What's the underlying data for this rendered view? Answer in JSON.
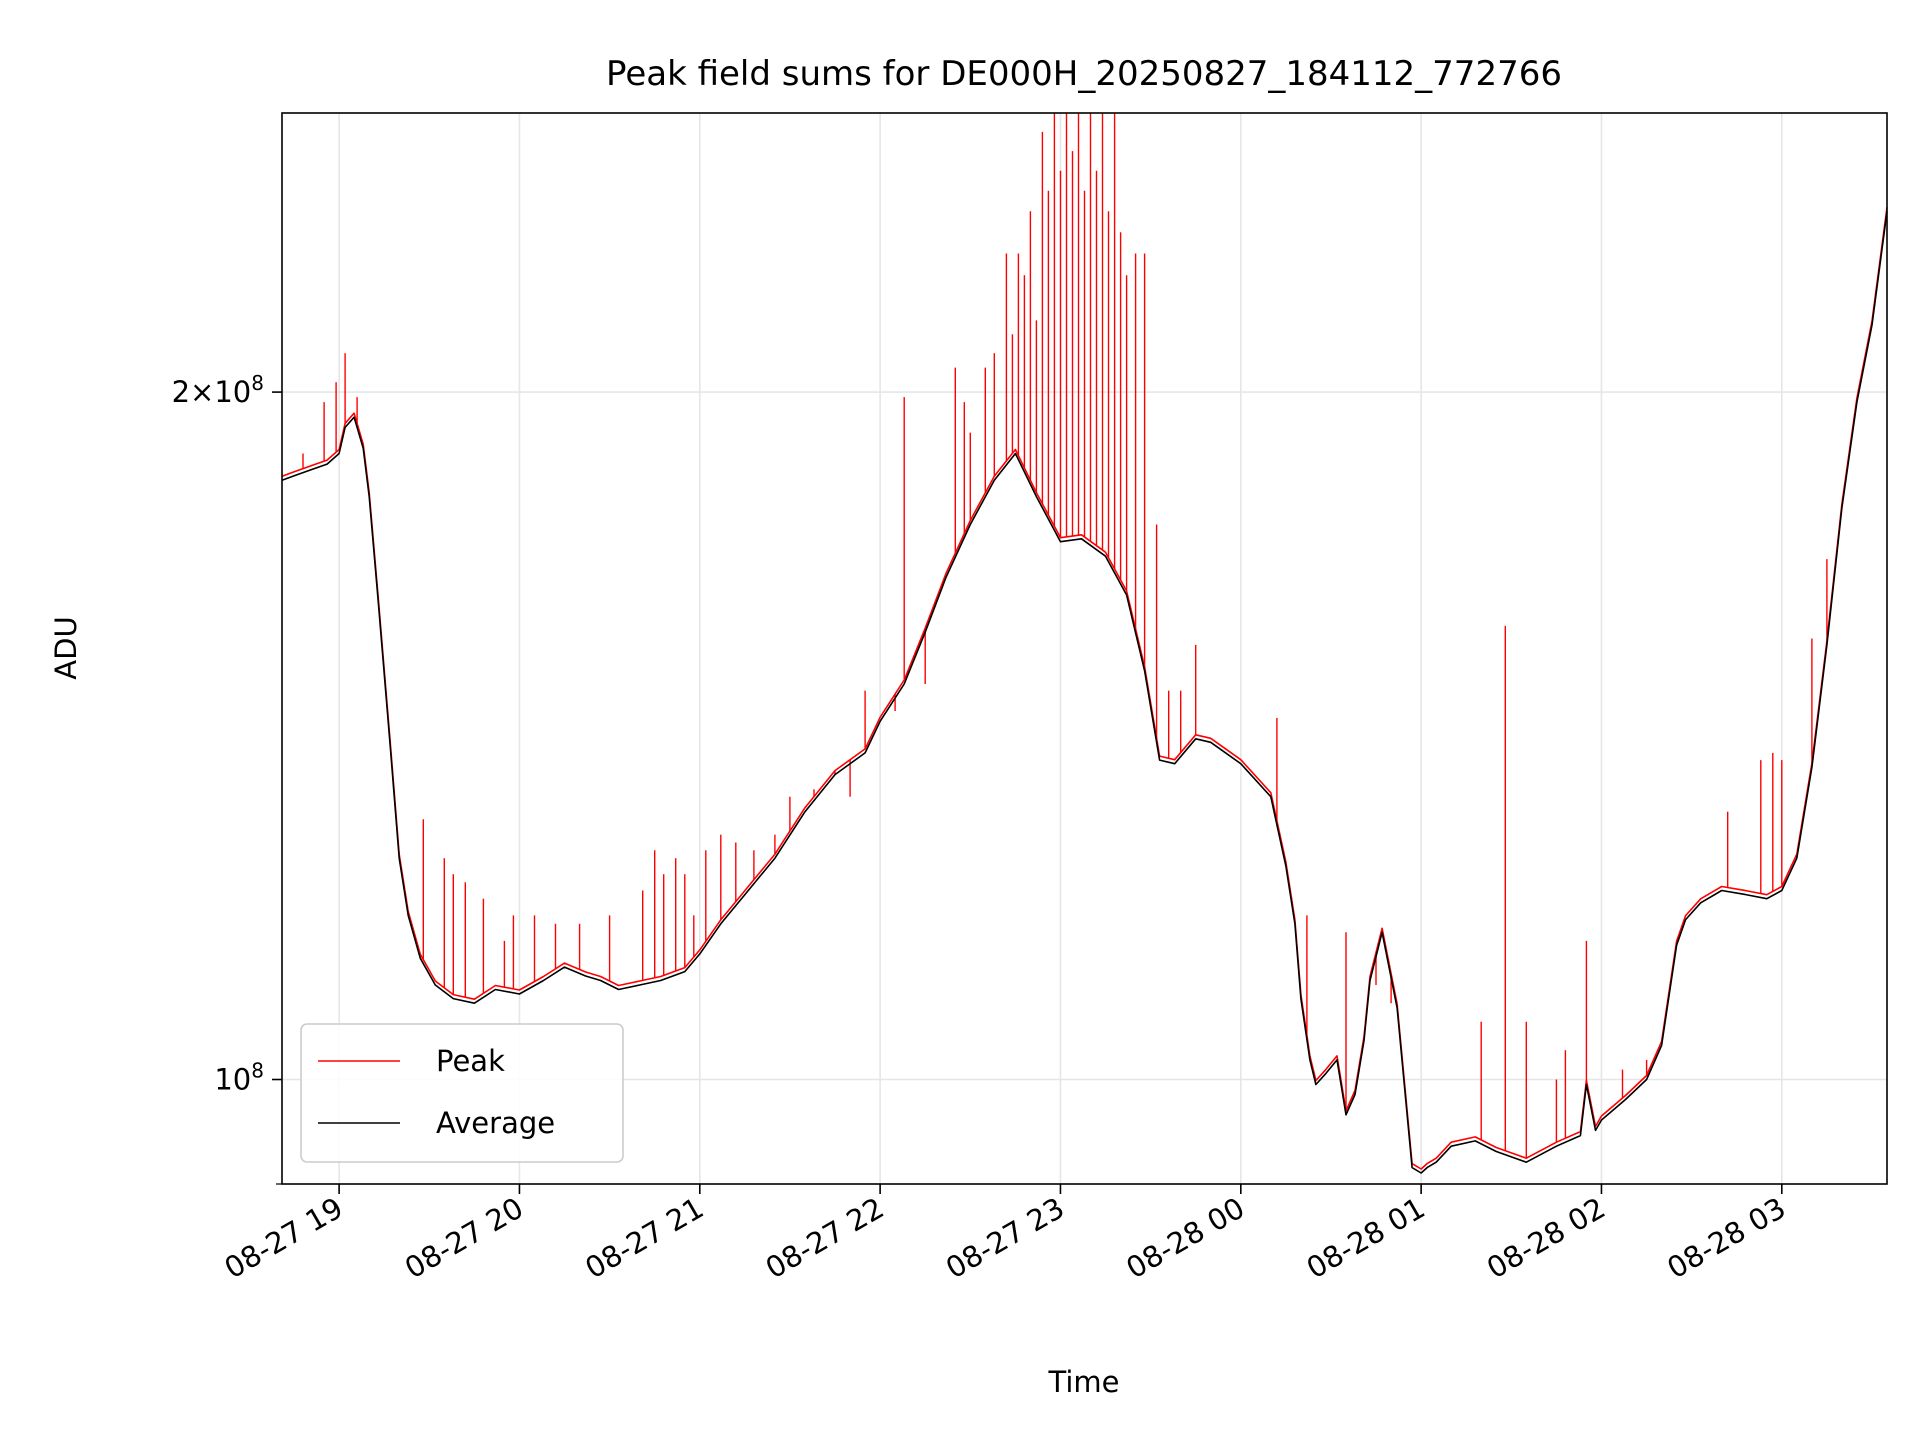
{
  "chart_data": {
    "type": "line",
    "title": "Peak field sums for DE000H_20250827_184112_772766",
    "xlabel": "Time",
    "ylabel": "ADU",
    "y_scale": "log",
    "ylim": [
      90000000,
      265000000
    ],
    "xlim": [
      "2025-08-27 18:41",
      "2025-08-28 03:35"
    ],
    "grid": true,
    "legend_position": "lower-left",
    "x_ticks": [
      {
        "t": "2025-08-27 19:00",
        "label": "08-27 19"
      },
      {
        "t": "2025-08-27 20:00",
        "label": "08-27 20"
      },
      {
        "t": "2025-08-27 21:00",
        "label": "08-27 21"
      },
      {
        "t": "2025-08-27 22:00",
        "label": "08-27 22"
      },
      {
        "t": "2025-08-27 23:00",
        "label": "08-27 23"
      },
      {
        "t": "2025-08-28 00:00",
        "label": "08-28 00"
      },
      {
        "t": "2025-08-28 01:00",
        "label": "08-28 01"
      },
      {
        "t": "2025-08-28 02:00",
        "label": "08-28 02"
      },
      {
        "t": "2025-08-28 03:00",
        "label": "08-28 03"
      }
    ],
    "y_ticks": [
      {
        "value": 100000000,
        "base": "10",
        "exp": "8",
        "label": "10^8"
      },
      {
        "value": 200000000,
        "mantissa": "2×",
        "base": "10",
        "exp": "8",
        "label": "2×10^8"
      }
    ],
    "series": [
      {
        "name": "Average",
        "color": "#000000",
        "x": [
          "2025-08-27 18:41",
          "2025-08-27 18:46",
          "2025-08-27 18:51",
          "2025-08-27 18:56",
          "2025-08-27 19:00",
          "2025-08-27 19:02",
          "2025-08-27 19:05",
          "2025-08-27 19:08",
          "2025-08-27 19:10",
          "2025-08-27 19:13",
          "2025-08-27 19:17",
          "2025-08-27 19:20",
          "2025-08-27 19:23",
          "2025-08-27 19:27",
          "2025-08-27 19:32",
          "2025-08-27 19:38",
          "2025-08-27 19:45",
          "2025-08-27 19:52",
          "2025-08-27 20:00",
          "2025-08-27 20:08",
          "2025-08-27 20:15",
          "2025-08-27 20:22",
          "2025-08-27 20:27",
          "2025-08-27 20:33",
          "2025-08-27 20:40",
          "2025-08-27 20:47",
          "2025-08-27 20:55",
          "2025-08-27 21:00",
          "2025-08-27 21:07",
          "2025-08-27 21:15",
          "2025-08-27 21:25",
          "2025-08-27 21:35",
          "2025-08-27 21:45",
          "2025-08-27 21:55",
          "2025-08-27 22:00",
          "2025-08-27 22:08",
          "2025-08-27 22:15",
          "2025-08-27 22:22",
          "2025-08-27 22:30",
          "2025-08-27 22:38",
          "2025-08-27 22:45",
          "2025-08-27 22:52",
          "2025-08-27 23:00",
          "2025-08-27 23:07",
          "2025-08-27 23:15",
          "2025-08-27 23:22",
          "2025-08-27 23:28",
          "2025-08-27 23:33",
          "2025-08-27 23:38",
          "2025-08-27 23:45",
          "2025-08-27 23:50",
          "2025-08-28 00:00",
          "2025-08-28 00:10",
          "2025-08-28 00:15",
          "2025-08-28 00:18",
          "2025-08-28 00:20",
          "2025-08-28 00:23",
          "2025-08-28 00:25",
          "2025-08-28 00:28",
          "2025-08-28 00:32",
          "2025-08-28 00:35",
          "2025-08-28 00:38",
          "2025-08-28 00:41",
          "2025-08-28 00:43",
          "2025-08-28 00:47",
          "2025-08-28 00:52",
          "2025-08-28 00:57",
          "2025-08-28 01:00",
          "2025-08-28 01:02",
          "2025-08-28 01:05",
          "2025-08-28 01:10",
          "2025-08-28 01:18",
          "2025-08-28 01:25",
          "2025-08-28 01:35",
          "2025-08-28 01:45",
          "2025-08-28 01:53",
          "2025-08-28 01:55",
          "2025-08-28 01:58",
          "2025-08-28 02:00",
          "2025-08-28 02:08",
          "2025-08-28 02:15",
          "2025-08-28 02:20",
          "2025-08-28 02:25",
          "2025-08-28 02:28",
          "2025-08-28 02:33",
          "2025-08-28 02:40",
          "2025-08-28 02:48",
          "2025-08-28 02:55",
          "2025-08-28 03:00",
          "2025-08-28 03:05",
          "2025-08-28 03:10",
          "2025-08-28 03:15",
          "2025-08-28 03:20",
          "2025-08-28 03:25",
          "2025-08-28 03:30",
          "2025-08-28 03:35"
        ],
        "y": [
          183000000,
          184000000,
          185000000,
          186000000,
          188000000,
          193000000,
          195000000,
          189000000,
          180000000,
          162000000,
          140000000,
          125000000,
          118000000,
          113000000,
          110000000,
          108500000,
          108000000,
          109500000,
          109000000,
          110500000,
          112000000,
          111000000,
          110500000,
          109500000,
          110000000,
          110500000,
          111500000,
          113500000,
          117000000,
          120500000,
          125000000,
          131000000,
          136000000,
          139000000,
          143500000,
          149000000,
          157000000,
          166000000,
          175000000,
          183000000,
          188000000,
          180000000,
          172000000,
          172500000,
          169500000,
          163000000,
          151000000,
          138000000,
          137500000,
          141000000,
          140500000,
          137500000,
          133000000,
          124000000,
          117000000,
          108500000,
          102000000,
          99500000,
          100500000,
          102000000,
          96500000,
          98500000,
          104000000,
          110500000,
          116000000,
          107500000,
          91500000,
          91000000,
          91500000,
          92000000,
          93500000,
          94000000,
          93000000,
          92000000,
          93500000,
          94500000,
          99500000,
          95000000,
          96000000,
          98000000,
          100000000,
          103500000,
          114500000,
          117500000,
          119500000,
          121000000,
          120500000,
          120000000,
          121000000,
          125000000,
          137000000,
          155000000,
          178000000,
          198000000,
          214000000,
          240000000
        ]
      },
      {
        "name": "Peak",
        "color": "#ff0000",
        "spikes": [
          {
            "t": "2025-08-27 18:48",
            "y": 188000000
          },
          {
            "t": "2025-08-27 18:55",
            "y": 198000000
          },
          {
            "t": "2025-08-27 18:59",
            "y": 202000000
          },
          {
            "t": "2025-08-27 19:02",
            "y": 208000000
          },
          {
            "t": "2025-08-27 19:06",
            "y": 199000000
          },
          {
            "t": "2025-08-27 19:28",
            "y": 130000000
          },
          {
            "t": "2025-08-27 19:35",
            "y": 125000000
          },
          {
            "t": "2025-08-27 19:38",
            "y": 123000000
          },
          {
            "t": "2025-08-27 19:42",
            "y": 122000000
          },
          {
            "t": "2025-08-27 19:48",
            "y": 120000000
          },
          {
            "t": "2025-08-27 19:55",
            "y": 115000000
          },
          {
            "t": "2025-08-27 19:58",
            "y": 118000000
          },
          {
            "t": "2025-08-27 20:05",
            "y": 118000000
          },
          {
            "t": "2025-08-27 20:12",
            "y": 117000000
          },
          {
            "t": "2025-08-27 20:20",
            "y": 117000000
          },
          {
            "t": "2025-08-27 20:30",
            "y": 118000000
          },
          {
            "t": "2025-08-27 20:41",
            "y": 121000000
          },
          {
            "t": "2025-08-27 20:45",
            "y": 126000000
          },
          {
            "t": "2025-08-27 20:48",
            "y": 123000000
          },
          {
            "t": "2025-08-27 20:52",
            "y": 125000000
          },
          {
            "t": "2025-08-27 20:55",
            "y": 123000000
          },
          {
            "t": "2025-08-27 20:58",
            "y": 118000000
          },
          {
            "t": "2025-08-27 21:02",
            "y": 126000000
          },
          {
            "t": "2025-08-27 21:07",
            "y": 128000000
          },
          {
            "t": "2025-08-27 21:12",
            "y": 127000000
          },
          {
            "t": "2025-08-27 21:18",
            "y": 126000000
          },
          {
            "t": "2025-08-27 21:25",
            "y": 128000000
          },
          {
            "t": "2025-08-27 21:30",
            "y": 133000000
          },
          {
            "t": "2025-08-27 21:38",
            "y": 134000000
          },
          {
            "t": "2025-08-27 21:45",
            "y": 136000000
          },
          {
            "t": "2025-08-27 21:50",
            "y": 133000000
          },
          {
            "t": "2025-08-27 21:55",
            "y": 148000000
          },
          {
            "t": "2025-08-27 22:05",
            "y": 145000000
          },
          {
            "t": "2025-08-27 22:08",
            "y": 199000000
          },
          {
            "t": "2025-08-27 22:15",
            "y": 149000000
          },
          {
            "t": "2025-08-27 22:25",
            "y": 205000000
          },
          {
            "t": "2025-08-27 22:28",
            "y": 198000000
          },
          {
            "t": "2025-08-27 22:30",
            "y": 192000000
          },
          {
            "t": "2025-08-27 22:35",
            "y": 205000000
          },
          {
            "t": "2025-08-27 22:38",
            "y": 208000000
          },
          {
            "t": "2025-08-27 22:42",
            "y": 230000000
          },
          {
            "t": "2025-08-27 22:44",
            "y": 212000000
          },
          {
            "t": "2025-08-27 22:46",
            "y": 230000000
          },
          {
            "t": "2025-08-27 22:48",
            "y": 225000000
          },
          {
            "t": "2025-08-27 22:50",
            "y": 240000000
          },
          {
            "t": "2025-08-27 22:52",
            "y": 215000000
          },
          {
            "t": "2025-08-27 22:54",
            "y": 260000000
          },
          {
            "t": "2025-08-27 22:56",
            "y": 245000000
          },
          {
            "t": "2025-08-27 22:58",
            "y": 265000000
          },
          {
            "t": "2025-08-27 23:00",
            "y": 250000000
          },
          {
            "t": "2025-08-27 23:02",
            "y": 265000000
          },
          {
            "t": "2025-08-27 23:04",
            "y": 255000000
          },
          {
            "t": "2025-08-27 23:06",
            "y": 265000000
          },
          {
            "t": "2025-08-27 23:08",
            "y": 245000000
          },
          {
            "t": "2025-08-27 23:10",
            "y": 265000000
          },
          {
            "t": "2025-08-27 23:12",
            "y": 250000000
          },
          {
            "t": "2025-08-27 23:14",
            "y": 265000000
          },
          {
            "t": "2025-08-27 23:16",
            "y": 240000000
          },
          {
            "t": "2025-08-27 23:18",
            "y": 265000000
          },
          {
            "t": "2025-08-27 23:20",
            "y": 235000000
          },
          {
            "t": "2025-08-27 23:22",
            "y": 225000000
          },
          {
            "t": "2025-08-27 23:25",
            "y": 230000000
          },
          {
            "t": "2025-08-27 23:28",
            "y": 230000000
          },
          {
            "t": "2025-08-27 23:32",
            "y": 175000000
          },
          {
            "t": "2025-08-27 23:36",
            "y": 148000000
          },
          {
            "t": "2025-08-27 23:40",
            "y": 148000000
          },
          {
            "t": "2025-08-27 23:45",
            "y": 155000000
          },
          {
            "t": "2025-08-28 00:12",
            "y": 144000000
          },
          {
            "t": "2025-08-28 00:22",
            "y": 118000000
          },
          {
            "t": "2025-08-28 00:35",
            "y": 116000000
          },
          {
            "t": "2025-08-28 00:45",
            "y": 110000000
          },
          {
            "t": "2025-08-28 00:50",
            "y": 108000000
          },
          {
            "t": "2025-08-28 01:20",
            "y": 106000000
          },
          {
            "t": "2025-08-28 01:28",
            "y": 158000000
          },
          {
            "t": "2025-08-28 01:35",
            "y": 106000000
          },
          {
            "t": "2025-08-28 01:45",
            "y": 100000000
          },
          {
            "t": "2025-08-28 01:48",
            "y": 103000000
          },
          {
            "t": "2025-08-28 01:55",
            "y": 115000000
          },
          {
            "t": "2025-08-28 02:07",
            "y": 101000000
          },
          {
            "t": "2025-08-28 02:15",
            "y": 102000000
          },
          {
            "t": "2025-08-28 02:42",
            "y": 131000000
          },
          {
            "t": "2025-08-28 02:53",
            "y": 138000000
          },
          {
            "t": "2025-08-28 02:57",
            "y": 139000000
          },
          {
            "t": "2025-08-28 03:00",
            "y": 138000000
          },
          {
            "t": "2025-08-28 03:10",
            "y": 156000000
          },
          {
            "t": "2025-08-28 03:15",
            "y": 169000000
          }
        ]
      }
    ]
  }
}
